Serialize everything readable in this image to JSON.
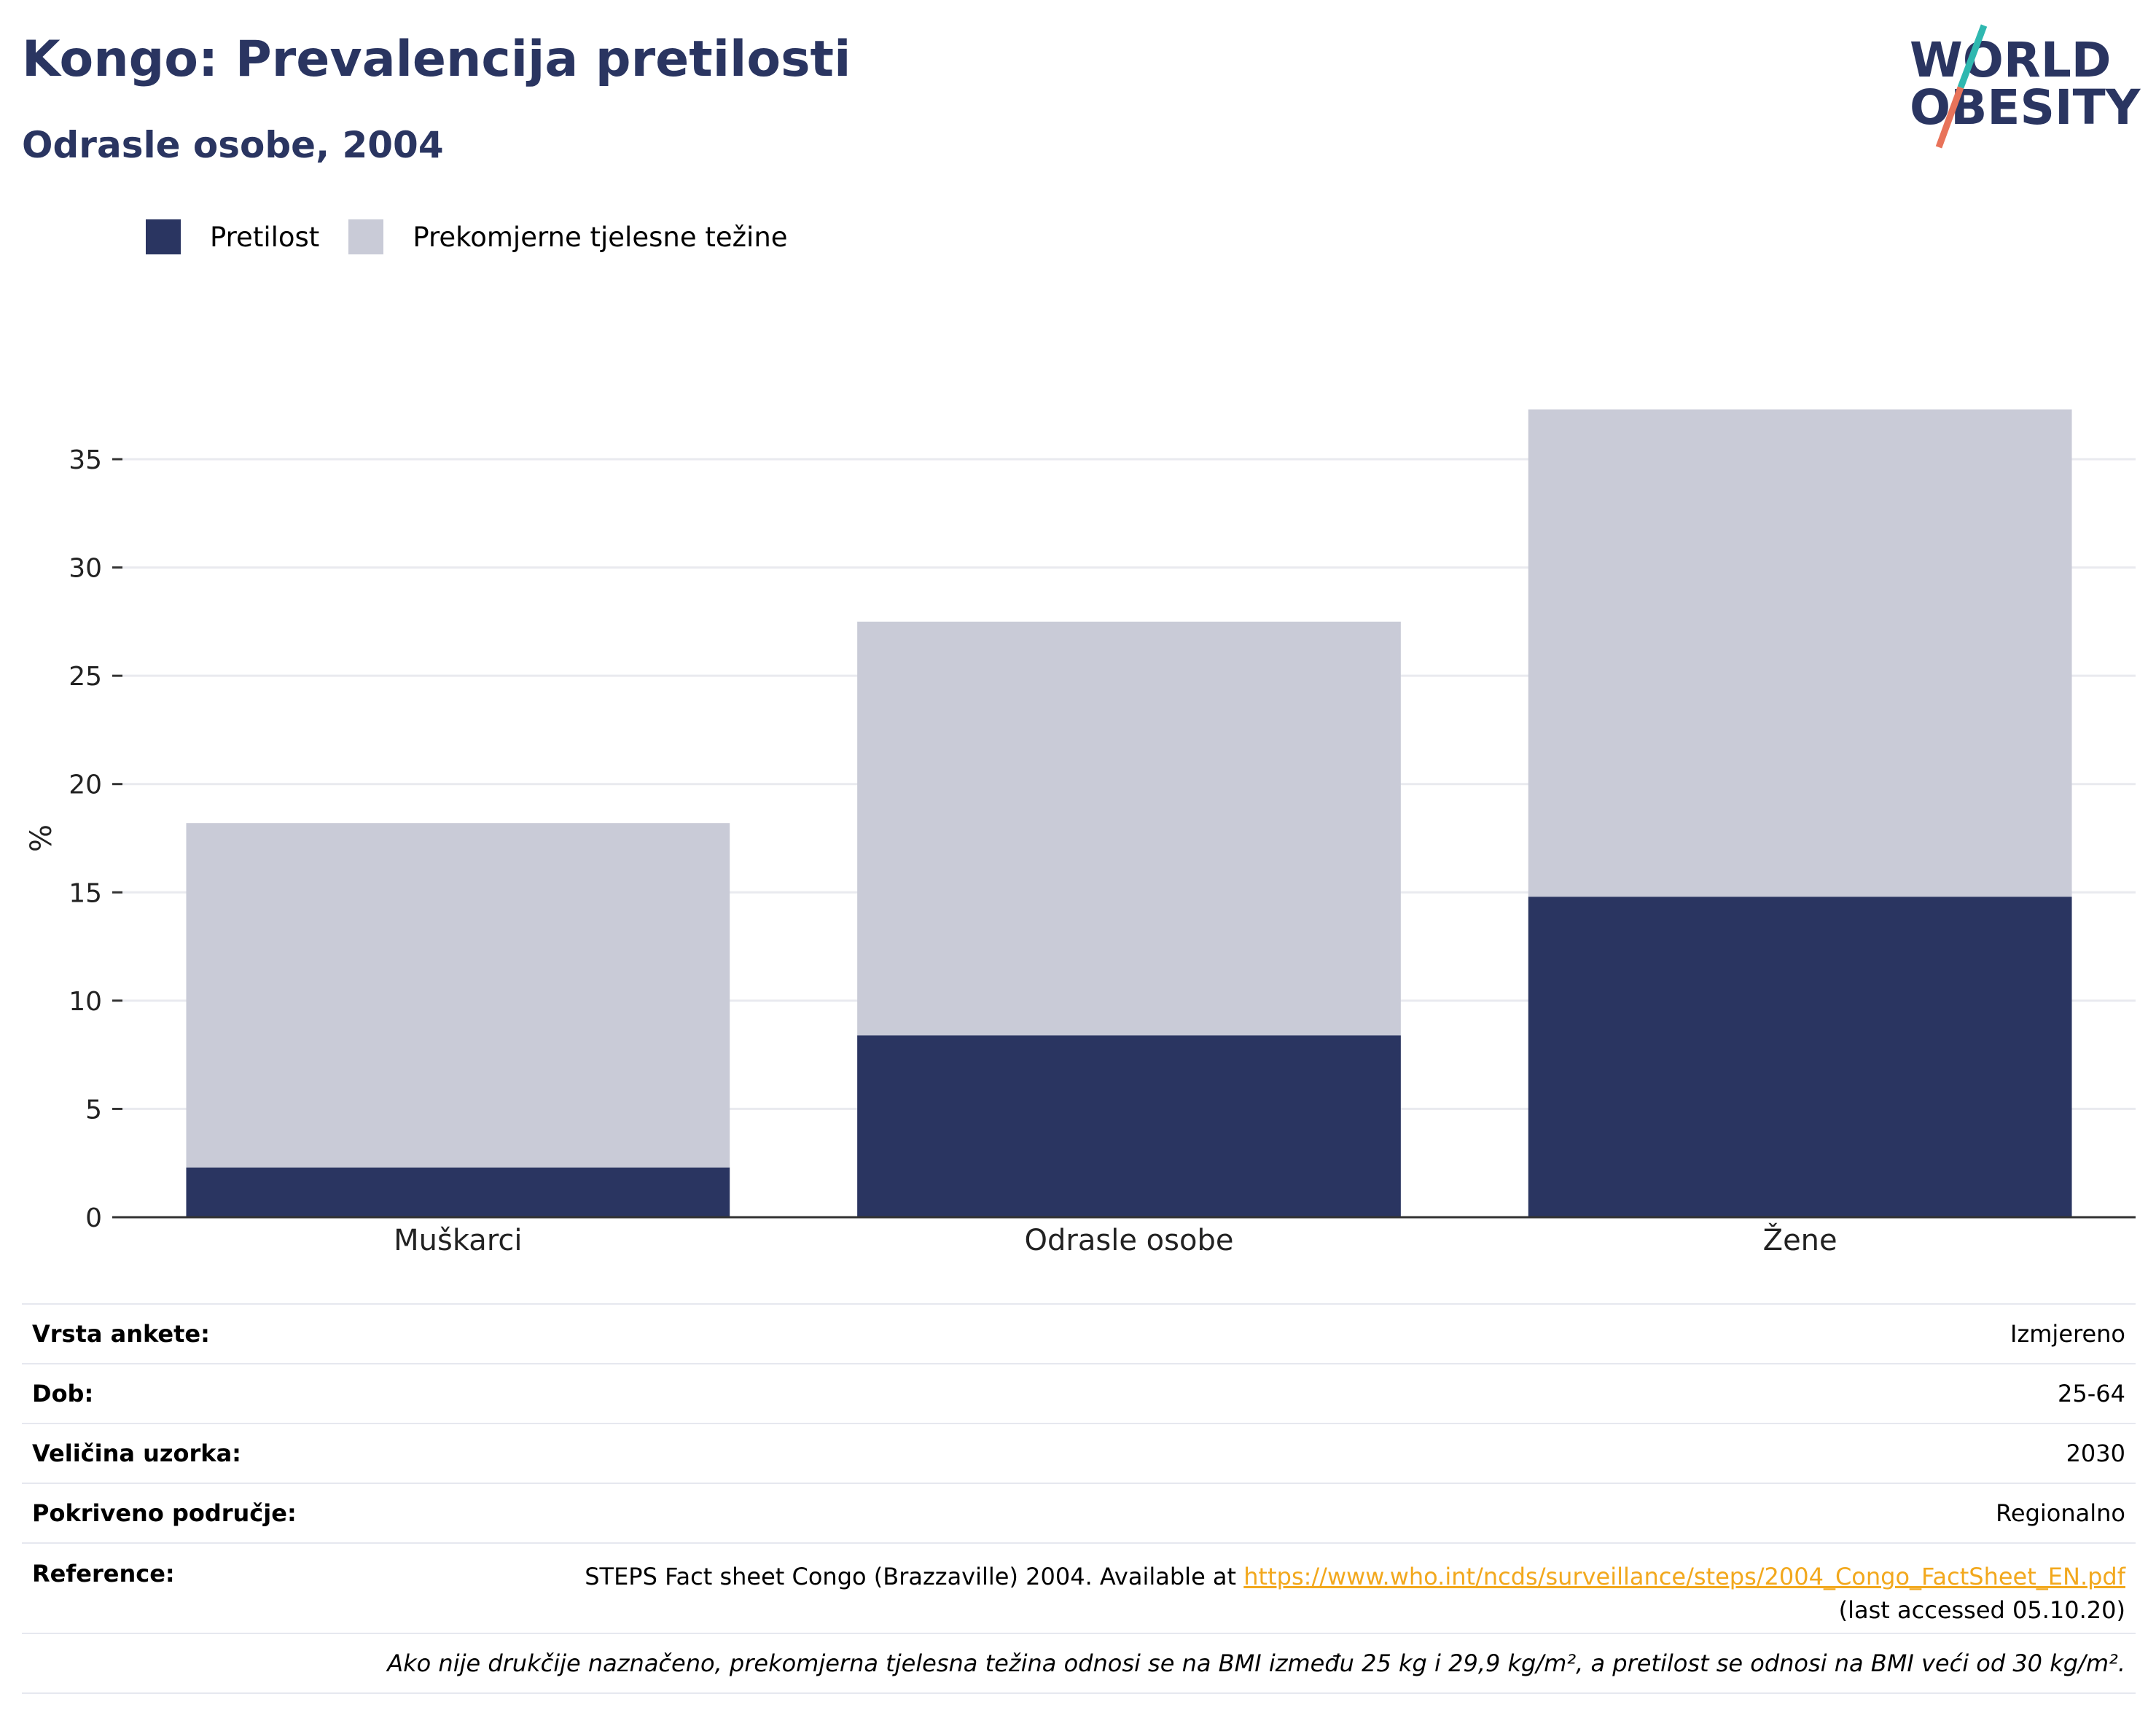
{
  "header": {
    "title": "Kongo: Prevalencija pretilosti",
    "subtitle": "Odrasle osobe, 2004"
  },
  "logo": {
    "line1": "WORLD",
    "line2": "OBESITY",
    "accent_colors": [
      "#2fb8b0",
      "#e8735a"
    ]
  },
  "colors": {
    "obesity": "#2a3561",
    "overweight": "#c9cbd7",
    "title": "#2a3561",
    "link": "#f2a81d"
  },
  "chart_data": {
    "type": "bar",
    "stacked": true,
    "categories": [
      "Muškarci",
      "Odrasle osobe",
      "Žene"
    ],
    "series": [
      {
        "name": "Pretilost",
        "values": [
          2.3,
          8.4,
          14.8
        ]
      },
      {
        "name": "Prekomjerne tjelesne težine",
        "values": [
          15.9,
          19.1,
          22.5
        ]
      }
    ],
    "ylabel": "%",
    "xlabel": "",
    "ylim": [
      0,
      37.5
    ],
    "yticks": [
      0,
      5,
      10,
      15,
      20,
      25,
      30,
      35
    ],
    "grid": true,
    "legend": "top-left"
  },
  "info": {
    "survey_type_label": "Vrsta ankete:",
    "survey_type_value": "Izmjereno",
    "age_label": "Dob:",
    "age_value": "25-64",
    "sample_label": "Veličina uzorka:",
    "sample_value": "2030",
    "coverage_label": "Pokriveno područje:",
    "coverage_value": "Regionalno",
    "reference_label": "Reference:",
    "reference_text": "STEPS Fact sheet Congo (Brazzaville) 2004. Available at ",
    "reference_link": "https://www.who.int/ncds/surveillance/steps/2004_Congo_FactSheet_EN.pdf",
    "reference_accessed": "(last accessed 05.10.20)",
    "note": "Ako nije drukčije naznačeno, prekomjerna tjelesna težina odnosi se na BMI između 25 kg i 29,9 kg/m², a pretilost se odnosi na BMI veći od 30 kg/m²."
  }
}
